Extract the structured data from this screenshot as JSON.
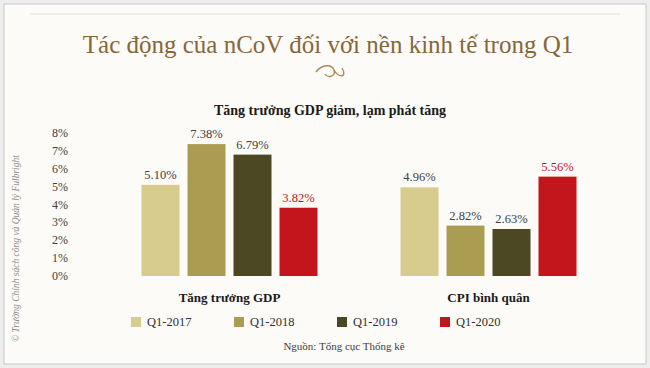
{
  "chart_data": {
    "type": "bar",
    "title": "Tác động của nCoV đối với nền kinh tế trong Q1",
    "subtitle": "Tăng trưởng GDP giảm, lạm phát tăng",
    "source": "Nguồn: Tổng cục Thống kê",
    "credit": "© Trường Chính sách công và Quản lý Fulbright",
    "categories": [
      "Tăng trưởng GDP",
      "CPI bình quân"
    ],
    "series": [
      {
        "name": "Q1-2017",
        "color": "#d8cb8e",
        "values": [
          5.1,
          4.96
        ],
        "value_labels": [
          "5.10%",
          "4.96%"
        ]
      },
      {
        "name": "Q1-2018",
        "color": "#aa9d52",
        "values": [
          7.38,
          2.82
        ],
        "value_labels": [
          "7.38%",
          "2.82%"
        ]
      },
      {
        "name": "Q1-2019",
        "color": "#4b4823",
        "values": [
          6.79,
          2.63
        ],
        "value_labels": [
          "6.79%",
          "2.63%"
        ]
      },
      {
        "name": "Q1-2020",
        "color": "#c3161c",
        "values": [
          3.82,
          5.56
        ],
        "value_labels": [
          "3.82%",
          "5.56%"
        ]
      }
    ],
    "ylim": [
      0,
      8
    ],
    "yticks": [
      {
        "value": 0,
        "label": "0%"
      },
      {
        "value": 1,
        "label": "1%"
      },
      {
        "value": 2,
        "label": "2%"
      },
      {
        "value": 3,
        "label": "3%"
      },
      {
        "value": 4,
        "label": "4%"
      },
      {
        "value": 5,
        "label": "5%"
      },
      {
        "value": 6,
        "label": "6%"
      },
      {
        "value": 7,
        "label": "7%"
      },
      {
        "value": 8,
        "label": "8%"
      }
    ],
    "grid": false,
    "data_labels": true,
    "legend": "bottom"
  }
}
